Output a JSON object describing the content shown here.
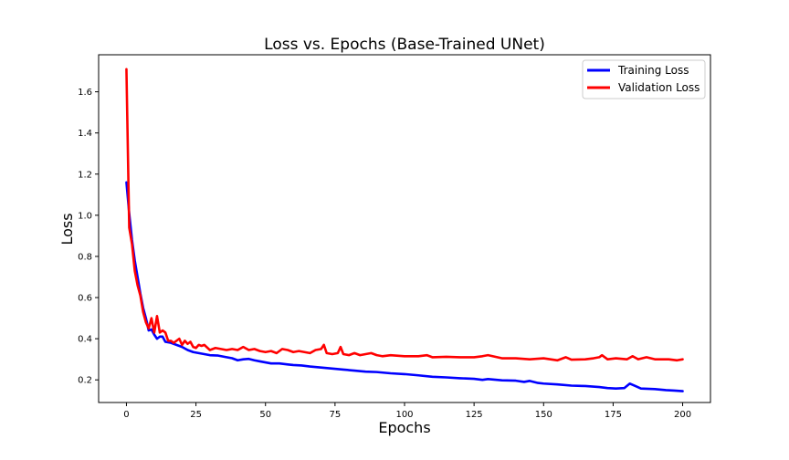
{
  "chart_data": {
    "type": "line",
    "title": "Loss vs. Epochs (Base-Trained UNet)",
    "xlabel": "Epochs",
    "ylabel": "Loss",
    "xlim": [
      -10,
      210
    ],
    "ylim": [
      0.09,
      1.78
    ],
    "xticks": [
      0,
      25,
      50,
      75,
      100,
      125,
      150,
      175,
      200
    ],
    "yticks": [
      0.2,
      0.4,
      0.6,
      0.8,
      1.0,
      1.2,
      1.4,
      1.6
    ],
    "grid": false,
    "legend_position": "upper right",
    "series": [
      {
        "name": "Training Loss",
        "color": "#0000ff",
        "points": [
          [
            0,
            1.16
          ],
          [
            1,
            1.01
          ],
          [
            2,
            0.88
          ],
          [
            3,
            0.78
          ],
          [
            4,
            0.7
          ],
          [
            5,
            0.62
          ],
          [
            6,
            0.55
          ],
          [
            7,
            0.5
          ],
          [
            8,
            0.44
          ],
          [
            9,
            0.445
          ],
          [
            10,
            0.42
          ],
          [
            11,
            0.4
          ],
          [
            12,
            0.41
          ],
          [
            13,
            0.41
          ],
          [
            14,
            0.385
          ],
          [
            16,
            0.38
          ],
          [
            18,
            0.37
          ],
          [
            20,
            0.36
          ],
          [
            22,
            0.345
          ],
          [
            24,
            0.335
          ],
          [
            26,
            0.33
          ],
          [
            28,
            0.325
          ],
          [
            30,
            0.32
          ],
          [
            33,
            0.318
          ],
          [
            36,
            0.31
          ],
          [
            38,
            0.305
          ],
          [
            40,
            0.295
          ],
          [
            42,
            0.3
          ],
          [
            44,
            0.302
          ],
          [
            46,
            0.295
          ],
          [
            48,
            0.29
          ],
          [
            50,
            0.285
          ],
          [
            52,
            0.28
          ],
          [
            55,
            0.28
          ],
          [
            58,
            0.275
          ],
          [
            60,
            0.272
          ],
          [
            63,
            0.27
          ],
          [
            66,
            0.265
          ],
          [
            70,
            0.26
          ],
          [
            74,
            0.255
          ],
          [
            78,
            0.25
          ],
          [
            82,
            0.245
          ],
          [
            86,
            0.24
          ],
          [
            90,
            0.238
          ],
          [
            95,
            0.232
          ],
          [
            100,
            0.228
          ],
          [
            105,
            0.222
          ],
          [
            110,
            0.215
          ],
          [
            115,
            0.212
          ],
          [
            120,
            0.208
          ],
          [
            125,
            0.205
          ],
          [
            128,
            0.2
          ],
          [
            130,
            0.204
          ],
          [
            135,
            0.198
          ],
          [
            140,
            0.196
          ],
          [
            143,
            0.19
          ],
          [
            145,
            0.195
          ],
          [
            148,
            0.185
          ],
          [
            150,
            0.182
          ],
          [
            155,
            0.178
          ],
          [
            160,
            0.172
          ],
          [
            165,
            0.17
          ],
          [
            170,
            0.165
          ],
          [
            173,
            0.16
          ],
          [
            176,
            0.158
          ],
          [
            179,
            0.16
          ],
          [
            181,
            0.182
          ],
          [
            183,
            0.17
          ],
          [
            185,
            0.158
          ],
          [
            190,
            0.155
          ],
          [
            194,
            0.15
          ],
          [
            197,
            0.148
          ],
          [
            200,
            0.145
          ]
        ]
      },
      {
        "name": "Validation Loss",
        "color": "#ff0000",
        "points": [
          [
            0,
            1.71
          ],
          [
            1,
            0.94
          ],
          [
            2,
            0.86
          ],
          [
            3,
            0.73
          ],
          [
            4,
            0.66
          ],
          [
            5,
            0.61
          ],
          [
            6,
            0.53
          ],
          [
            7,
            0.48
          ],
          [
            8,
            0.45
          ],
          [
            9,
            0.5
          ],
          [
            10,
            0.43
          ],
          [
            11,
            0.51
          ],
          [
            12,
            0.43
          ],
          [
            13,
            0.44
          ],
          [
            14,
            0.43
          ],
          [
            15,
            0.39
          ],
          [
            16,
            0.39
          ],
          [
            17,
            0.38
          ],
          [
            18,
            0.39
          ],
          [
            19,
            0.4
          ],
          [
            20,
            0.37
          ],
          [
            21,
            0.39
          ],
          [
            22,
            0.375
          ],
          [
            23,
            0.385
          ],
          [
            24,
            0.36
          ],
          [
            25,
            0.355
          ],
          [
            26,
            0.37
          ],
          [
            27,
            0.365
          ],
          [
            28,
            0.37
          ],
          [
            30,
            0.345
          ],
          [
            32,
            0.355
          ],
          [
            34,
            0.35
          ],
          [
            36,
            0.345
          ],
          [
            38,
            0.35
          ],
          [
            40,
            0.345
          ],
          [
            42,
            0.36
          ],
          [
            44,
            0.345
          ],
          [
            46,
            0.35
          ],
          [
            48,
            0.34
          ],
          [
            50,
            0.335
          ],
          [
            52,
            0.34
          ],
          [
            54,
            0.33
          ],
          [
            56,
            0.35
          ],
          [
            58,
            0.345
          ],
          [
            60,
            0.335
          ],
          [
            62,
            0.34
          ],
          [
            64,
            0.335
          ],
          [
            66,
            0.33
          ],
          [
            68,
            0.345
          ],
          [
            70,
            0.35
          ],
          [
            71,
            0.37
          ],
          [
            72,
            0.33
          ],
          [
            74,
            0.325
          ],
          [
            76,
            0.33
          ],
          [
            77,
            0.36
          ],
          [
            78,
            0.325
          ],
          [
            80,
            0.32
          ],
          [
            82,
            0.33
          ],
          [
            84,
            0.32
          ],
          [
            86,
            0.325
          ],
          [
            88,
            0.33
          ],
          [
            90,
            0.32
          ],
          [
            92,
            0.315
          ],
          [
            95,
            0.32
          ],
          [
            100,
            0.315
          ],
          [
            105,
            0.315
          ],
          [
            108,
            0.32
          ],
          [
            110,
            0.31
          ],
          [
            115,
            0.312
          ],
          [
            120,
            0.31
          ],
          [
            125,
            0.31
          ],
          [
            128,
            0.315
          ],
          [
            130,
            0.32
          ],
          [
            135,
            0.305
          ],
          [
            140,
            0.305
          ],
          [
            145,
            0.3
          ],
          [
            150,
            0.305
          ],
          [
            155,
            0.295
          ],
          [
            158,
            0.31
          ],
          [
            160,
            0.298
          ],
          [
            165,
            0.3
          ],
          [
            168,
            0.305
          ],
          [
            170,
            0.31
          ],
          [
            171,
            0.32
          ],
          [
            173,
            0.3
          ],
          [
            176,
            0.305
          ],
          [
            180,
            0.3
          ],
          [
            182,
            0.315
          ],
          [
            184,
            0.3
          ],
          [
            187,
            0.31
          ],
          [
            190,
            0.3
          ],
          [
            195,
            0.3
          ],
          [
            198,
            0.295
          ],
          [
            200,
            0.3
          ]
        ]
      }
    ]
  }
}
